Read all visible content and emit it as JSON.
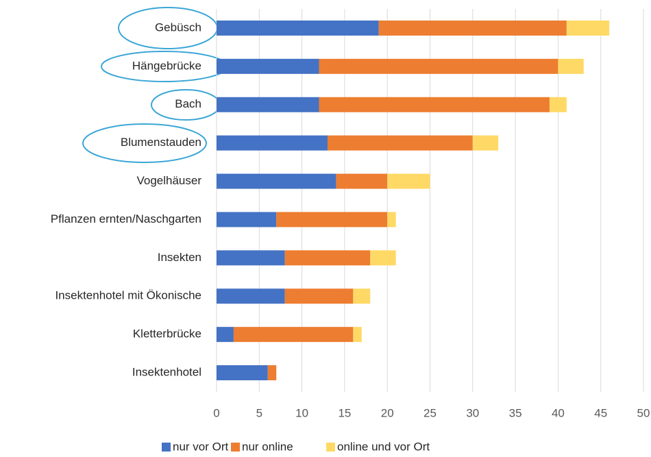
{
  "chart_data": {
    "type": "stacked-barh",
    "categories": [
      "Gebüsch",
      "Hängebrücke",
      "Bach",
      "Blumenstauden",
      "Vogelhäuser",
      "Pflanzen ernten/Naschgarten",
      "Insekten",
      "Insektenhotel mit Ökonische",
      "Kletterbrücke",
      "Insektenhotel"
    ],
    "series": [
      {
        "name": "nur vor Ort",
        "color": "#4472c4",
        "values": [
          19,
          12,
          12,
          13,
          14,
          7,
          8,
          8,
          2,
          6
        ]
      },
      {
        "name": "nur online",
        "color": "#ed7d31",
        "values": [
          22,
          28,
          27,
          17,
          6,
          13,
          10,
          8,
          14,
          1
        ]
      },
      {
        "name": "online und vor Ort",
        "color": "#ffd966",
        "values": [
          5,
          3,
          2,
          3,
          5,
          1,
          3,
          2,
          1,
          0
        ]
      }
    ],
    "xlim": [
      0,
      50
    ],
    "xticks": [
      0,
      5,
      10,
      15,
      20,
      25,
      30,
      35,
      40,
      45,
      50
    ],
    "grid": true,
    "legend": "bottom"
  }
}
